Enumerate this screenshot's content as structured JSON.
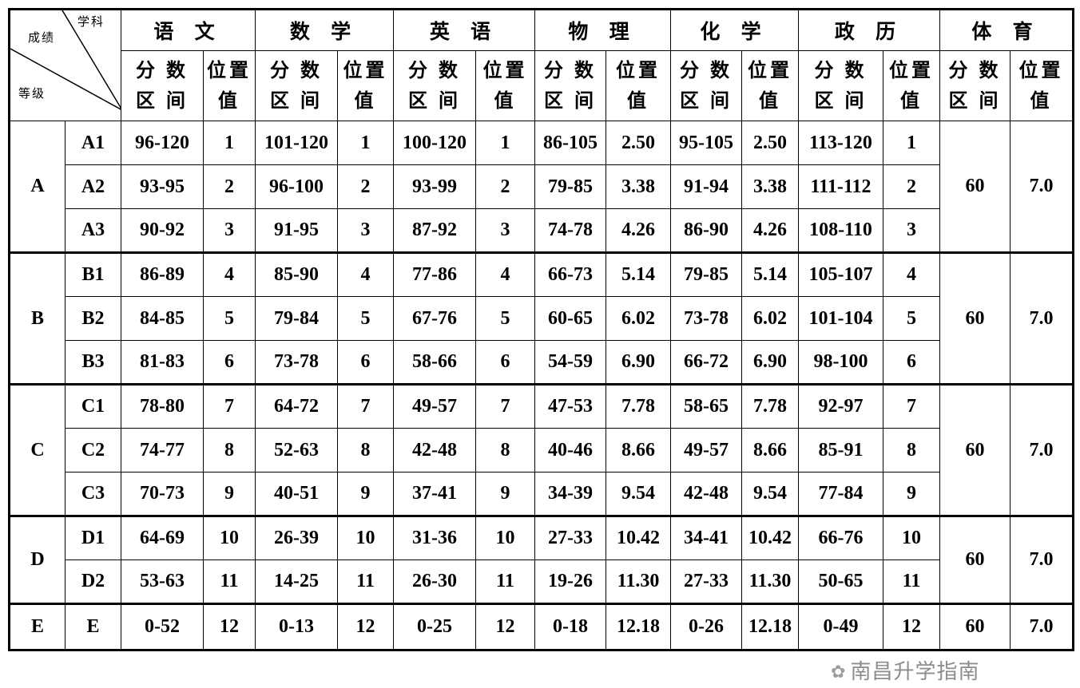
{
  "corner": {
    "subject": "学科",
    "score": "成绩",
    "grade": "等级"
  },
  "subjects": [
    "语 文",
    "数 学",
    "英 语",
    "物 理",
    "化 学",
    "政 历",
    "体 育"
  ],
  "sub_headers": {
    "range_line1": "分 数",
    "range_line2": "区 间",
    "value_line1": "位置",
    "value_line2": "值"
  },
  "groups": [
    {
      "level": "A",
      "pe_score": "60",
      "pe_value": "7.0",
      "rows": [
        {
          "sub": "A1",
          "cells": [
            "96-120",
            "1",
            "101-120",
            "1",
            "100-120",
            "1",
            "86-105",
            "2.50",
            "95-105",
            "2.50",
            "113-120",
            "1"
          ]
        },
        {
          "sub": "A2",
          "cells": [
            "93-95",
            "2",
            "96-100",
            "2",
            "93-99",
            "2",
            "79-85",
            "3.38",
            "91-94",
            "3.38",
            "111-112",
            "2"
          ]
        },
        {
          "sub": "A3",
          "cells": [
            "90-92",
            "3",
            "91-95",
            "3",
            "87-92",
            "3",
            "74-78",
            "4.26",
            "86-90",
            "4.26",
            "108-110",
            "3"
          ]
        }
      ]
    },
    {
      "level": "B",
      "pe_score": "60",
      "pe_value": "7.0",
      "rows": [
        {
          "sub": "B1",
          "cells": [
            "86-89",
            "4",
            "85-90",
            "4",
            "77-86",
            "4",
            "66-73",
            "5.14",
            "79-85",
            "5.14",
            "105-107",
            "4"
          ]
        },
        {
          "sub": "B2",
          "cells": [
            "84-85",
            "5",
            "79-84",
            "5",
            "67-76",
            "5",
            "60-65",
            "6.02",
            "73-78",
            "6.02",
            "101-104",
            "5"
          ]
        },
        {
          "sub": "B3",
          "cells": [
            "81-83",
            "6",
            "73-78",
            "6",
            "58-66",
            "6",
            "54-59",
            "6.90",
            "66-72",
            "6.90",
            "98-100",
            "6"
          ]
        }
      ]
    },
    {
      "level": "C",
      "pe_score": "60",
      "pe_value": "7.0",
      "rows": [
        {
          "sub": "C1",
          "cells": [
            "78-80",
            "7",
            "64-72",
            "7",
            "49-57",
            "7",
            "47-53",
            "7.78",
            "58-65",
            "7.78",
            "92-97",
            "7"
          ]
        },
        {
          "sub": "C2",
          "cells": [
            "74-77",
            "8",
            "52-63",
            "8",
            "42-48",
            "8",
            "40-46",
            "8.66",
            "49-57",
            "8.66",
            "85-91",
            "8"
          ]
        },
        {
          "sub": "C3",
          "cells": [
            "70-73",
            "9",
            "40-51",
            "9",
            "37-41",
            "9",
            "34-39",
            "9.54",
            "42-48",
            "9.54",
            "77-84",
            "9"
          ]
        }
      ]
    },
    {
      "level": "D",
      "pe_score": "60",
      "pe_value": "7.0",
      "rows": [
        {
          "sub": "D1",
          "cells": [
            "64-69",
            "10",
            "26-39",
            "10",
            "31-36",
            "10",
            "27-33",
            "10.42",
            "34-41",
            "10.42",
            "66-76",
            "10"
          ]
        },
        {
          "sub": "D2",
          "cells": [
            "53-63",
            "11",
            "14-25",
            "11",
            "26-30",
            "11",
            "19-26",
            "11.30",
            "27-33",
            "11.30",
            "50-65",
            "11"
          ]
        }
      ]
    },
    {
      "level": "E",
      "pe_score": "60",
      "pe_value": "7.0",
      "rows": [
        {
          "sub": "E",
          "cells": [
            "0-52",
            "12",
            "0-13",
            "12",
            "0-25",
            "12",
            "0-18",
            "12.18",
            "0-26",
            "12.18",
            "0-49",
            "12"
          ]
        }
      ]
    }
  ],
  "watermark": "南昌升学指南",
  "watermark_icon": "wechat-icon"
}
